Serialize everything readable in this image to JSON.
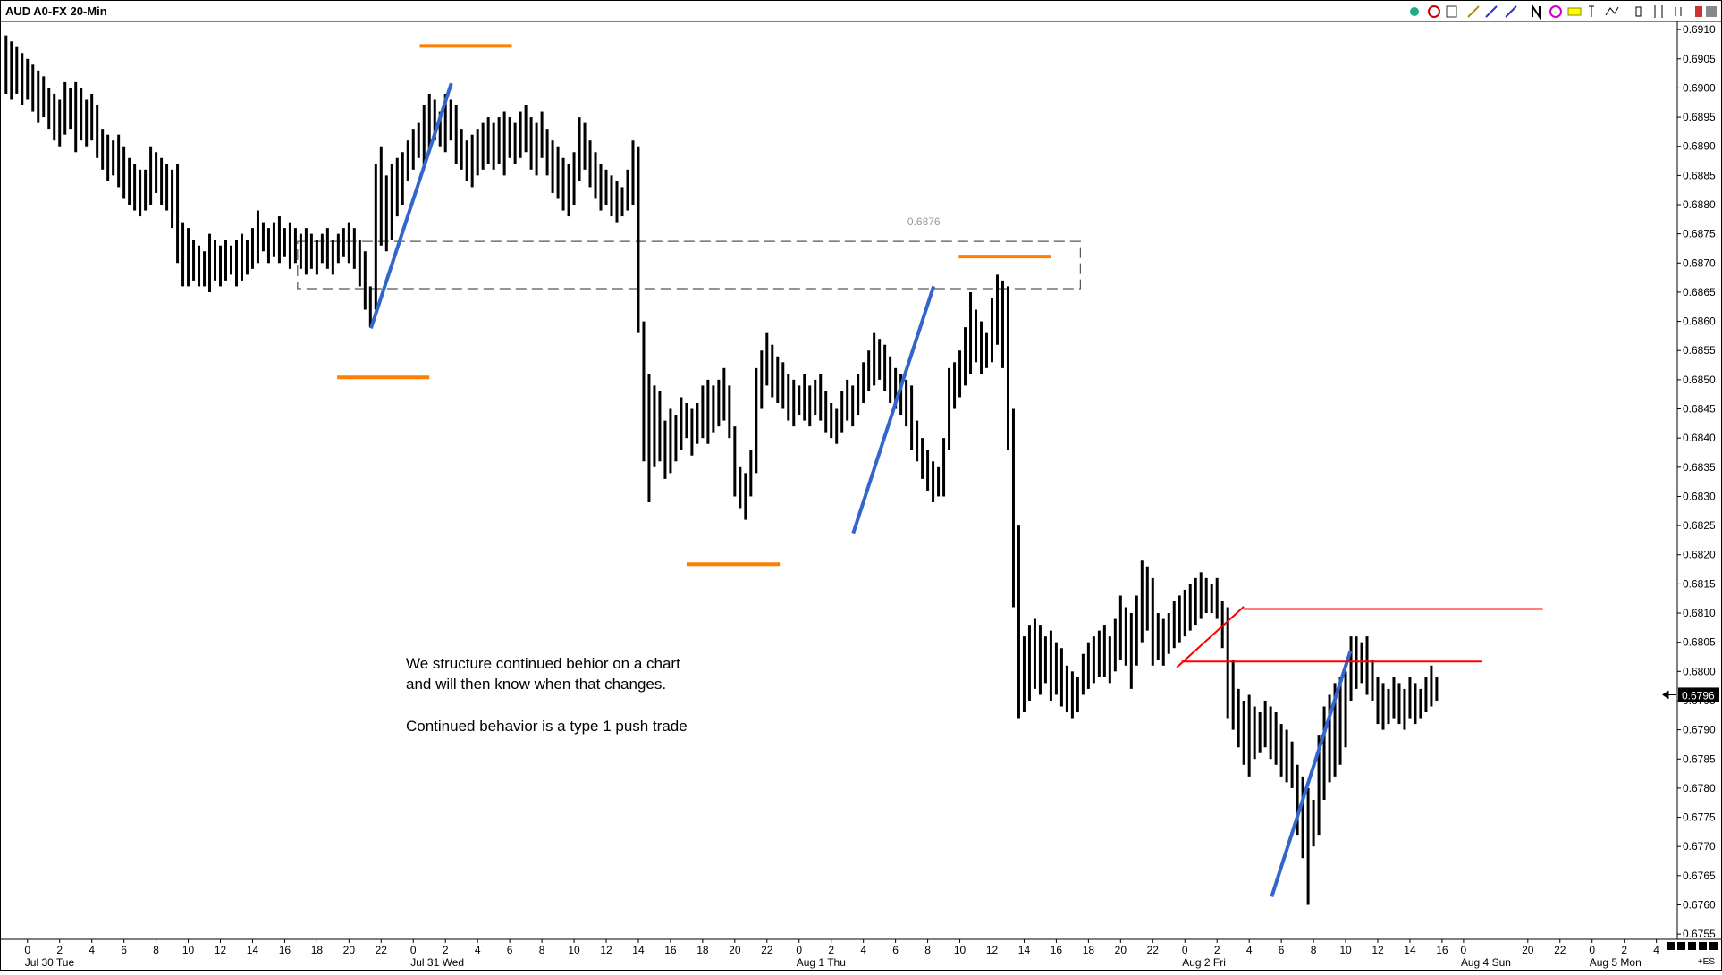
{
  "chart_data": {
    "type": "range-bar",
    "title": "AUD A0-FX 20-Min",
    "ylim": [
      0.67541,
      0.69114
    ],
    "xlim": [
      -0.8,
      311.9
    ],
    "yticks": [
      0.6755,
      {
        "value": 0.676,
        "label": "0.6760"
      },
      0.6765,
      {
        "value": 0.677,
        "label": "0.6770"
      },
      0.6775,
      {
        "value": 0.678,
        "label": "0.6780"
      },
      0.6785,
      {
        "value": 0.679,
        "label": "0.6790"
      },
      0.6795,
      {
        "value": 0.68,
        "label": "0.6800"
      },
      0.6805,
      {
        "value": 0.681,
        "label": "0.6810"
      },
      0.6815,
      {
        "value": 0.682,
        "label": "0.6820"
      },
      0.6825,
      {
        "value": 0.683,
        "label": "0.6830"
      },
      0.6835,
      {
        "value": 0.684,
        "label": "0.6840"
      },
      0.6845,
      {
        "value": 0.685,
        "label": "0.6850"
      },
      0.6855,
      {
        "value": 0.686,
        "label": "0.6860"
      },
      0.6865,
      {
        "value": 0.687,
        "label": "0.6870"
      },
      0.6875,
      {
        "value": 0.688,
        "label": "0.6880"
      },
      0.6885,
      {
        "value": 0.689,
        "label": "0.6890"
      },
      0.6895,
      {
        "value": 0.69,
        "label": "0.6900"
      },
      0.6905,
      {
        "value": 0.691,
        "label": "0.6910"
      }
    ],
    "xticks": [
      {
        "value": 4,
        "label": "0"
      },
      {
        "value": 10,
        "label": "2"
      },
      {
        "value": 16,
        "label": "4"
      },
      {
        "value": 22,
        "label": "6"
      },
      {
        "value": 28,
        "label": "8"
      },
      {
        "value": 34,
        "label": "10"
      },
      {
        "value": 40,
        "label": "12"
      },
      {
        "value": 46,
        "label": "14"
      },
      {
        "value": 52,
        "label": "16"
      },
      {
        "value": 58,
        "label": "18"
      },
      {
        "value": 64,
        "label": "20"
      },
      {
        "value": 70,
        "label": "22"
      },
      {
        "value": 76,
        "label": "0"
      },
      {
        "value": 82,
        "label": "2"
      },
      {
        "value": 88,
        "label": "4"
      },
      {
        "value": 94,
        "label": "6"
      },
      {
        "value": 100,
        "label": "8"
      },
      {
        "value": 106,
        "label": "10"
      },
      {
        "value": 112,
        "label": "12"
      },
      {
        "value": 118,
        "label": "14"
      },
      {
        "value": 124,
        "label": "16"
      },
      {
        "value": 130,
        "label": "18"
      },
      {
        "value": 136,
        "label": "20"
      },
      {
        "value": 142,
        "label": "22"
      },
      {
        "value": 148,
        "label": "0"
      },
      {
        "value": 154,
        "label": "2"
      },
      {
        "value": 160,
        "label": "4"
      },
      {
        "value": 166,
        "label": "6"
      },
      {
        "value": 172,
        "label": "8"
      },
      {
        "value": 178,
        "label": "10"
      },
      {
        "value": 184,
        "label": "12"
      },
      {
        "value": 190,
        "label": "14"
      },
      {
        "value": 196,
        "label": "16"
      },
      {
        "value": 202,
        "label": "18"
      },
      {
        "value": 208,
        "label": "20"
      },
      {
        "value": 214,
        "label": "22"
      },
      {
        "value": 220,
        "label": "0"
      },
      {
        "value": 226,
        "label": "2"
      },
      {
        "value": 232,
        "label": "4"
      },
      {
        "value": 238,
        "label": "6"
      },
      {
        "value": 244,
        "label": "8"
      },
      {
        "value": 250,
        "label": "10"
      },
      {
        "value": 256,
        "label": "12"
      },
      {
        "value": 262,
        "label": "14"
      },
      {
        "value": 268,
        "label": "16"
      },
      {
        "value": 272,
        "label": "0"
      },
      {
        "value": 284,
        "label": "20"
      },
      {
        "value": 290,
        "label": "22"
      },
      {
        "value": 296,
        "label": "0"
      },
      {
        "value": 302,
        "label": "2"
      },
      {
        "value": 308,
        "label": "4"
      }
    ],
    "date_labels": [
      {
        "value": 4,
        "label": "Jul 30 Tue"
      },
      {
        "value": 76,
        "label": "Jul 31 Wed"
      },
      {
        "value": 148,
        "label": "Aug 1 Thu"
      },
      {
        "value": 220,
        "label": "Aug 2 Fri"
      },
      {
        "value": 272,
        "label": "Aug 4 Sun"
      },
      {
        "value": 296,
        "label": "Aug 5 Mon"
      }
    ],
    "color": "#000000",
    "high": [
      0.6909,
      0.6908,
      0.6907,
      0.6906,
      0.6905,
      0.6904,
      0.6903,
      0.6902,
      0.69,
      0.6899,
      0.6898,
      0.6901,
      0.69,
      0.6901,
      0.69,
      0.6898,
      0.6899,
      0.6897,
      0.6893,
      0.6892,
      0.6891,
      0.6892,
      0.689,
      0.6888,
      0.6887,
      0.6886,
      0.6886,
      0.689,
      0.6889,
      0.6888,
      0.6887,
      0.6886,
      0.6887,
      0.6877,
      0.6876,
      0.6874,
      0.6873,
      0.6872,
      0.6875,
      0.6874,
      0.6873,
      0.6874,
      0.6873,
      0.6874,
      0.6875,
      0.6874,
      0.6876,
      0.6879,
      0.6877,
      0.6876,
      0.6877,
      0.6878,
      0.6876,
      0.6877,
      0.6876,
      0.6875,
      0.6876,
      0.6875,
      0.6874,
      0.6875,
      0.6876,
      0.6874,
      0.6875,
      0.6876,
      0.6877,
      0.6876,
      0.6874,
      0.6872,
      0.6866,
      0.6887,
      0.689,
      0.6885,
      0.6887,
      0.6888,
      0.6889,
      0.6891,
      0.6893,
      0.6894,
      0.6897,
      0.6899,
      0.6898,
      0.6896,
      0.6899,
      0.6898,
      0.6897,
      0.6893,
      0.6891,
      0.6892,
      0.6893,
      0.6894,
      0.6895,
      0.6894,
      0.6895,
      0.6896,
      0.6895,
      0.6894,
      0.6896,
      0.6897,
      0.6895,
      0.6894,
      0.6896,
      0.6893,
      0.6891,
      0.689,
      0.6888,
      0.6887,
      0.6889,
      0.6895,
      0.6894,
      0.6891,
      0.6889,
      0.6887,
      0.6886,
      0.6885,
      0.6884,
      0.6883,
      0.6886,
      0.6891,
      0.689,
      0.686,
      0.6851,
      0.6849,
      0.6848,
      0.6843,
      0.6845,
      0.6844,
      0.6847,
      0.6846,
      0.6845,
      0.6846,
      0.6849,
      0.685,
      0.6849,
      0.685,
      0.6852,
      0.6849,
      0.6842,
      0.6835,
      0.6834,
      0.6838,
      0.6852,
      0.6855,
      0.6858,
      0.6856,
      0.6854,
      0.6853,
      0.6851,
      0.685,
      0.6849,
      0.6851,
      0.6849,
      0.685,
      0.6851,
      0.6848,
      0.6846,
      0.6845,
      0.6848,
      0.685,
      0.6849,
      0.6851,
      0.6853,
      0.6855,
      0.6858,
      0.6857,
      0.6856,
      0.6854,
      0.6852,
      0.6851,
      0.685,
      0.6849,
      0.6843,
      0.684,
      0.6838,
      0.6836,
      0.6835,
      0.684,
      0.6852,
      0.6853,
      0.6855,
      0.6859,
      0.6865,
      0.6862,
      0.686,
      0.6858,
      0.6864,
      0.6868,
      0.6867,
      0.6866,
      0.6845,
      0.6825,
      0.6806,
      0.6808,
      0.6809,
      0.6808,
      0.6806,
      0.6807,
      0.6805,
      0.6804,
      0.6801,
      0.68,
      0.6799,
      0.6803,
      0.6805,
      0.6806,
      0.6807,
      0.6808,
      0.6806,
      0.6809,
      0.6813,
      0.6811,
      0.681,
      0.6813,
      0.6819,
      0.6818,
      0.6816,
      0.681,
      0.6809,
      0.681,
      0.6812,
      0.6813,
      0.6814,
      0.6815,
      0.6816,
      0.6817,
      0.6816,
      0.6815,
      0.6816,
      0.6812,
      0.6811,
      0.6802,
      0.6797,
      0.6795,
      0.6796,
      0.6794,
      0.6793,
      0.6795,
      0.6794,
      0.6793,
      0.6791,
      0.679,
      0.6788,
      0.6784,
      0.6782,
      0.678,
      0.6778,
      0.6789,
      0.6794,
      0.6796,
      0.6798,
      0.6799,
      0.68,
      0.6806,
      0.6806,
      0.6805,
      0.6806,
      0.6802,
      0.6799,
      0.6798,
      0.6797,
      0.6799,
      0.6798,
      0.6797,
      0.6799,
      0.6798,
      0.6797,
      0.6799,
      0.6801,
      0.6799
    ],
    "low": [
      0.6899,
      0.6898,
      0.6899,
      0.6897,
      0.6898,
      0.6896,
      0.6894,
      0.6895,
      0.6893,
      0.6891,
      0.689,
      0.6892,
      0.6893,
      0.6889,
      0.6891,
      0.689,
      0.6891,
      0.6888,
      0.6886,
      0.6884,
      0.6885,
      0.6883,
      0.6881,
      0.688,
      0.6879,
      0.6878,
      0.6879,
      0.688,
      0.6882,
      0.688,
      0.6879,
      0.6876,
      0.687,
      0.6866,
      0.6866,
      0.6867,
      0.6866,
      0.6866,
      0.6865,
      0.6867,
      0.6866,
      0.6867,
      0.6868,
      0.6866,
      0.6867,
      0.6868,
      0.6869,
      0.687,
      0.6872,
      0.687,
      0.6871,
      0.687,
      0.6871,
      0.6869,
      0.687,
      0.6869,
      0.6868,
      0.6869,
      0.6868,
      0.687,
      0.6869,
      0.6868,
      0.687,
      0.6871,
      0.687,
      0.6869,
      0.6866,
      0.6862,
      0.6859,
      0.6862,
      0.6873,
      0.6872,
      0.6874,
      0.6878,
      0.688,
      0.6884,
      0.6886,
      0.6888,
      0.6887,
      0.6889,
      0.6891,
      0.689,
      0.6889,
      0.6891,
      0.6887,
      0.6886,
      0.6884,
      0.6883,
      0.6885,
      0.6886,
      0.6887,
      0.6886,
      0.6887,
      0.6885,
      0.6888,
      0.6887,
      0.6888,
      0.6889,
      0.6886,
      0.6885,
      0.6888,
      0.6885,
      0.6882,
      0.6881,
      0.6879,
      0.6878,
      0.688,
      0.6884,
      0.6886,
      0.6883,
      0.6881,
      0.6879,
      0.688,
      0.6878,
      0.6877,
      0.6878,
      0.6879,
      0.688,
      0.6858,
      0.6836,
      0.6829,
      0.6835,
      0.6836,
      0.6833,
      0.6834,
      0.6836,
      0.6838,
      0.684,
      0.6837,
      0.6839,
      0.684,
      0.6839,
      0.6841,
      0.6842,
      0.6843,
      0.684,
      0.683,
      0.6828,
      0.6826,
      0.683,
      0.6834,
      0.6845,
      0.6849,
      0.6847,
      0.6846,
      0.6845,
      0.6843,
      0.6842,
      0.6844,
      0.6843,
      0.6842,
      0.6844,
      0.6843,
      0.6841,
      0.684,
      0.6839,
      0.6841,
      0.6843,
      0.6842,
      0.6844,
      0.6846,
      0.6848,
      0.6849,
      0.685,
      0.6848,
      0.6846,
      0.6845,
      0.6844,
      0.6842,
      0.6838,
      0.6836,
      0.6833,
      0.6831,
      0.6829,
      0.683,
      0.683,
      0.6838,
      0.6845,
      0.6847,
      0.6849,
      0.6851,
      0.6853,
      0.6851,
      0.6852,
      0.6853,
      0.6856,
      0.6852,
      0.6838,
      0.6811,
      0.6792,
      0.6793,
      0.6795,
      0.6797,
      0.6796,
      0.6798,
      0.6795,
      0.6796,
      0.6794,
      0.6793,
      0.6792,
      0.6793,
      0.6796,
      0.6797,
      0.6798,
      0.6799,
      0.6799,
      0.6798,
      0.68,
      0.6802,
      0.6801,
      0.6797,
      0.6801,
      0.6805,
      0.6807,
      0.6801,
      0.6802,
      0.6801,
      0.6803,
      0.6804,
      0.6805,
      0.6806,
      0.6807,
      0.6808,
      0.6809,
      0.681,
      0.681,
      0.6809,
      0.6804,
      0.6792,
      0.679,
      0.6787,
      0.6784,
      0.6782,
      0.6785,
      0.6786,
      0.6787,
      0.6785,
      0.6784,
      0.6782,
      0.6781,
      0.678,
      0.6772,
      0.6768,
      0.676,
      0.677,
      0.6772,
      0.6778,
      0.6781,
      0.6782,
      0.6784,
      0.6787,
      0.6795,
      0.6797,
      0.6798,
      0.6796,
      0.6795,
      0.6791,
      0.679,
      0.6791,
      0.6792,
      0.6791,
      0.679,
      0.6792,
      0.6791,
      0.6792,
      0.6793,
      0.6794,
      0.6795
    ],
    "last_price": 0.6796,
    "drawings": [
      {
        "kind": "line",
        "color": "#ff7f00",
        "x": [
          77.2,
          94.4
        ],
        "y": [
          0.69072,
          0.69072
        ]
      },
      {
        "kind": "line",
        "color": "#ff7f00",
        "x": [
          61.8,
          79.0
        ],
        "y": [
          0.68504,
          0.68504
        ]
      },
      {
        "kind": "line",
        "color": "#ff7f00",
        "x": [
          127.0,
          144.4
        ],
        "y": [
          0.68184,
          0.68184
        ]
      },
      {
        "kind": "line",
        "color": "#ff7f00",
        "x": [
          177.8,
          195.0
        ],
        "y": [
          0.68711,
          0.68711
        ]
      },
      {
        "kind": "line",
        "color": "#3366cc",
        "x": [
          68.1,
          83.1
        ],
        "y": [
          0.68588,
          0.69008
        ]
      },
      {
        "kind": "line",
        "color": "#3366cc",
        "x": [
          158.1,
          173.1
        ],
        "y": [
          0.68237,
          0.6866
        ]
      },
      {
        "kind": "line",
        "color": "#3366cc",
        "x": [
          236.2,
          250.9
        ],
        "y": [
          0.67614,
          0.68035
        ]
      },
      {
        "kind": "line",
        "color": "#ff0000",
        "x": [
          231.0,
          286.8
        ],
        "y": [
          0.68107,
          0.68107
        ]
      },
      {
        "kind": "line",
        "color": "#ff0000",
        "x": [
          219.4,
          275.5
        ],
        "y": [
          0.68017,
          0.68017
        ]
      },
      {
        "kind": "line",
        "color": "#ff0000",
        "x": [
          218.5,
          231.0
        ],
        "y": [
          0.68007,
          0.68111
        ]
      },
      {
        "kind": "rect",
        "color": "#555555",
        "x": [
          54.4,
          200.5
        ],
        "y": [
          0.68656,
          0.68737
        ],
        "label": 0.6876
      }
    ],
    "annotations": [
      "We structure continued behior on a chart",
      "and will then know when that changes.",
      "Continued behavior is a type 1 push trade"
    ],
    "corner_label": "+ES"
  }
}
